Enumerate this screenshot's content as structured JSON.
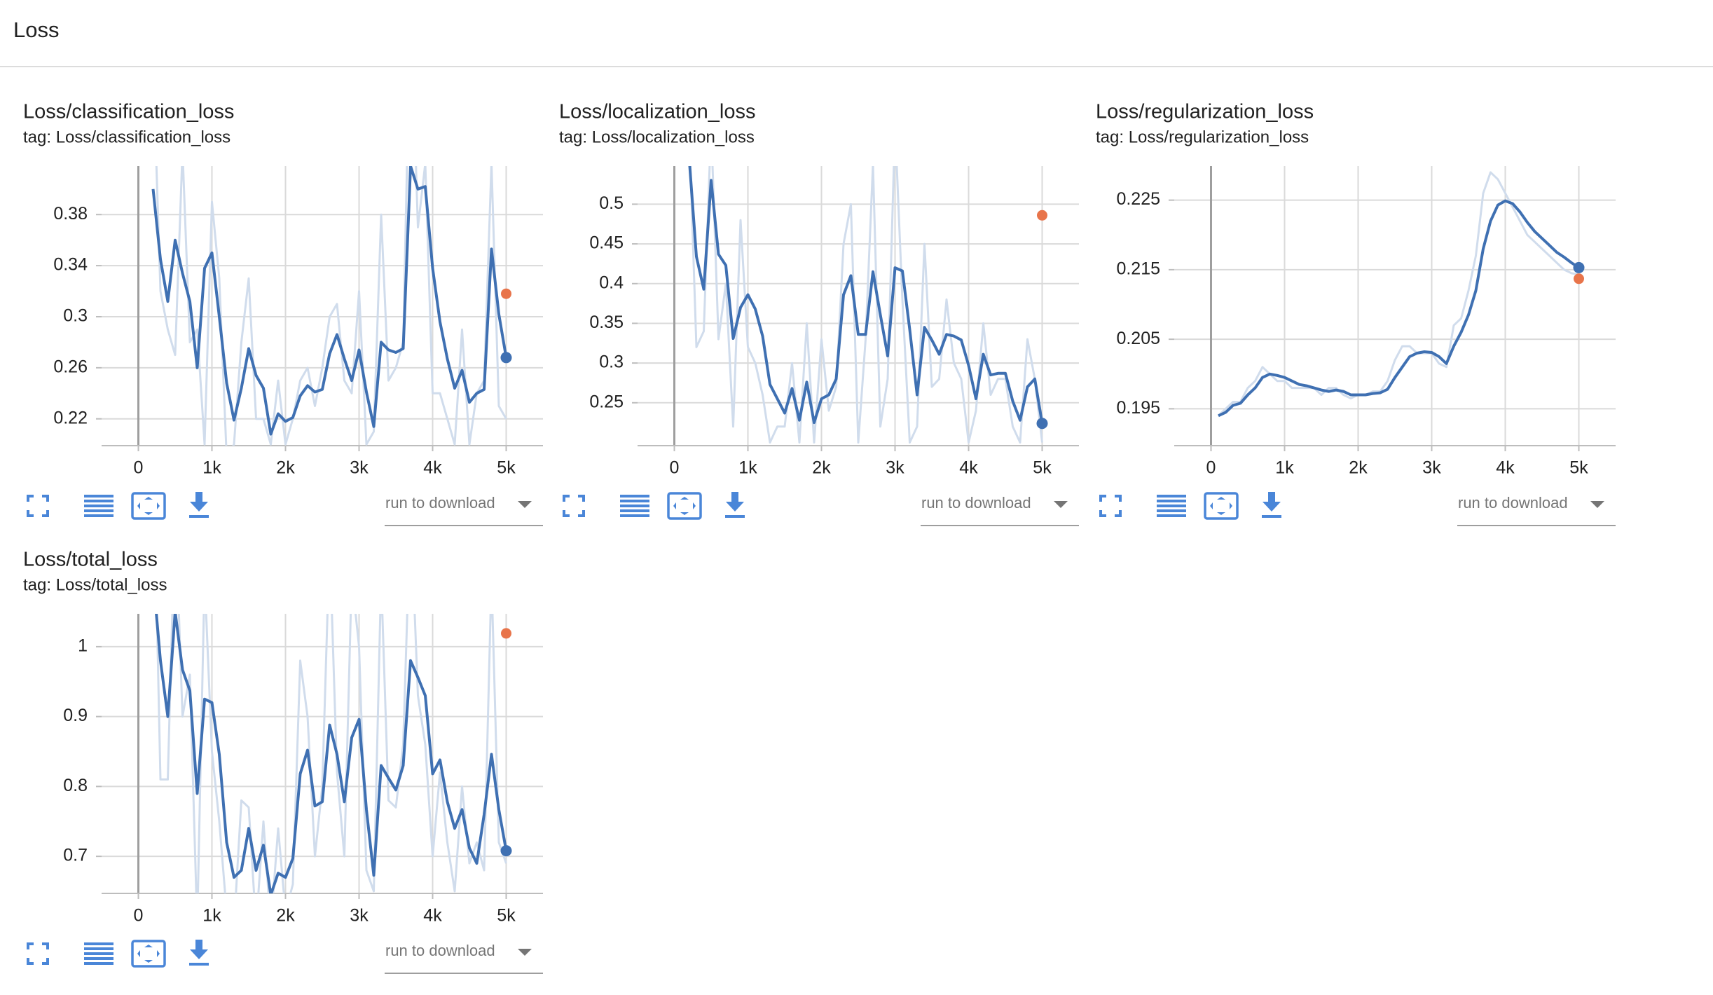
{
  "header": {
    "title": "Loss"
  },
  "chart_data": [
    {
      "type": "line",
      "title": "Loss/classification_loss",
      "subtitle": "tag: Loss/classification_loss",
      "dropdown": "run to download",
      "x": [
        200,
        300,
        400,
        500,
        600,
        700,
        800,
        900,
        1000,
        1100,
        1200,
        1300,
        1400,
        1500,
        1600,
        1700,
        1800,
        1900,
        2000,
        2100,
        2200,
        2300,
        2400,
        2500,
        2600,
        2700,
        2800,
        2900,
        3000,
        3100,
        3200,
        3300,
        3400,
        3500,
        3600,
        3700,
        3800,
        3900,
        4000,
        4100,
        4200,
        4300,
        4400,
        4500,
        4600,
        4700,
        4800,
        4900,
        5000
      ],
      "series": [
        {
          "color": "#d0dcec",
          "values": [
            0.5,
            0.32,
            0.29,
            0.27,
            0.43,
            0.28,
            0.29,
            0.2,
            0.39,
            0.33,
            0.19,
            0.2,
            0.28,
            0.33,
            0.22,
            0.22,
            0.2,
            0.25,
            0.2,
            0.22,
            0.25,
            0.26,
            0.23,
            0.26,
            0.3,
            0.31,
            0.25,
            0.24,
            0.32,
            0.2,
            0.21,
            0.38,
            0.25,
            0.26,
            0.28,
            0.55,
            0.37,
            0.42,
            0.24,
            0.24,
            0.22,
            0.2,
            0.29,
            0.2,
            0.24,
            0.25,
            0.42,
            0.23,
            0.22
          ]
        },
        {
          "color": "#3f70b2",
          "values": [
            0.4,
            0.345,
            0.312,
            0.36,
            0.334,
            0.312,
            0.26,
            0.338,
            0.35,
            0.3,
            0.248,
            0.219,
            0.244,
            0.275,
            0.254,
            0.244,
            0.208,
            0.224,
            0.218,
            0.221,
            0.238,
            0.246,
            0.241,
            0.243,
            0.271,
            0.286,
            0.267,
            0.25,
            0.274,
            0.241,
            0.214,
            0.28,
            0.274,
            0.272,
            0.275,
            0.418,
            0.4,
            0.402,
            0.338,
            0.296,
            0.267,
            0.244,
            0.258,
            0.233,
            0.24,
            0.243,
            0.353,
            0.302,
            0.268
          ]
        }
      ],
      "marker": {
        "x": 5000,
        "value": 0.318,
        "color": "#e8744a"
      },
      "xlim": [
        -500,
        5500
      ],
      "ylim": [
        0.199,
        0.418
      ],
      "xticks": [
        {
          "value": 0,
          "label": "0"
        },
        {
          "value": 1000,
          "label": "1k"
        },
        {
          "value": 2000,
          "label": "2k"
        },
        {
          "value": 3000,
          "label": "3k"
        },
        {
          "value": 4000,
          "label": "4k"
        },
        {
          "value": 5000,
          "label": "5k"
        }
      ],
      "yticks": [
        0.22,
        0.26,
        0.3,
        0.34,
        0.38
      ],
      "grid": true
    },
    {
      "type": "line",
      "title": "Loss/localization_loss",
      "subtitle": "tag: Loss/localization_loss",
      "dropdown": "run to download",
      "x": [
        200,
        300,
        400,
        500,
        600,
        700,
        800,
        900,
        1000,
        1100,
        1200,
        1300,
        1400,
        1500,
        1600,
        1700,
        1800,
        1900,
        2000,
        2100,
        2200,
        2300,
        2400,
        2500,
        2600,
        2700,
        2800,
        2900,
        3000,
        3100,
        3200,
        3300,
        3400,
        3500,
        3600,
        3700,
        3800,
        3900,
        4000,
        4100,
        4200,
        4300,
        4400,
        4500,
        4600,
        4700,
        4800,
        4900,
        5000
      ],
      "series": [
        {
          "color": "#d0dcec",
          "values": [
            0.6,
            0.32,
            0.34,
            0.6,
            0.33,
            0.4,
            0.22,
            0.48,
            0.32,
            0.3,
            0.26,
            0.2,
            0.22,
            0.22,
            0.3,
            0.2,
            0.35,
            0.2,
            0.33,
            0.24,
            0.27,
            0.45,
            0.5,
            0.2,
            0.33,
            0.55,
            0.22,
            0.28,
            0.6,
            0.38,
            0.2,
            0.22,
            0.45,
            0.27,
            0.28,
            0.38,
            0.3,
            0.28,
            0.2,
            0.24,
            0.35,
            0.26,
            0.28,
            0.28,
            0.22,
            0.2,
            0.33,
            0.28,
            0.2
          ]
        },
        {
          "color": "#3f70b2",
          "values": [
            0.56,
            0.434,
            0.393,
            0.53,
            0.437,
            0.423,
            0.331,
            0.37,
            0.386,
            0.368,
            0.334,
            0.273,
            0.255,
            0.237,
            0.268,
            0.228,
            0.276,
            0.225,
            0.255,
            0.26,
            0.28,
            0.386,
            0.41,
            0.336,
            0.336,
            0.415,
            0.361,
            0.309,
            0.42,
            0.416,
            0.342,
            0.26,
            0.345,
            0.329,
            0.311,
            0.336,
            0.334,
            0.329,
            0.297,
            0.255,
            0.311,
            0.285,
            0.287,
            0.287,
            0.252,
            0.228,
            0.27,
            0.28,
            0.224
          ]
        }
      ],
      "marker": {
        "x": 5000,
        "value": 0.486,
        "color": "#e8744a"
      },
      "xlim": [
        -500,
        5500
      ],
      "ylim": [
        0.196,
        0.548
      ],
      "xticks": [
        {
          "value": 0,
          "label": "0"
        },
        {
          "value": 1000,
          "label": "1k"
        },
        {
          "value": 2000,
          "label": "2k"
        },
        {
          "value": 3000,
          "label": "3k"
        },
        {
          "value": 4000,
          "label": "4k"
        },
        {
          "value": 5000,
          "label": "5k"
        }
      ],
      "yticks": [
        0.25,
        0.3,
        0.35,
        0.4,
        0.45,
        0.5
      ],
      "grid": true
    },
    {
      "type": "line",
      "title": "Loss/regularization_loss",
      "subtitle": "tag: Loss/regularization_loss",
      "dropdown": "run to download",
      "x": [
        100,
        200,
        300,
        400,
        500,
        600,
        700,
        800,
        900,
        1000,
        1100,
        1200,
        1300,
        1400,
        1500,
        1600,
        1700,
        1800,
        1900,
        2000,
        2100,
        2200,
        2300,
        2400,
        2500,
        2600,
        2700,
        2800,
        2900,
        3000,
        3100,
        3200,
        3300,
        3400,
        3500,
        3600,
        3700,
        3800,
        3900,
        4000,
        4100,
        4200,
        4300,
        4400,
        4500,
        4600,
        4700,
        4800,
        4900,
        5000
      ],
      "series": [
        {
          "color": "#d0dcec",
          "values": [
            0.194,
            0.195,
            0.196,
            0.196,
            0.198,
            0.199,
            0.201,
            0.2,
            0.199,
            0.199,
            0.198,
            0.198,
            0.198,
            0.198,
            0.197,
            0.198,
            0.198,
            0.197,
            0.1965,
            0.197,
            0.197,
            0.1975,
            0.1975,
            0.199,
            0.202,
            0.204,
            0.204,
            0.203,
            0.203,
            0.203,
            0.2015,
            0.201,
            0.207,
            0.208,
            0.212,
            0.217,
            0.226,
            0.229,
            0.228,
            0.226,
            0.224,
            0.222,
            0.22,
            0.219,
            0.218,
            0.217,
            0.216,
            0.215,
            0.2145,
            0.2143
          ]
        },
        {
          "color": "#3f70b2",
          "values": [
            0.194,
            0.1945,
            0.1955,
            0.1958,
            0.197,
            0.198,
            0.1995,
            0.2,
            0.1998,
            0.1995,
            0.199,
            0.1985,
            0.1983,
            0.198,
            0.1977,
            0.1975,
            0.1977,
            0.1975,
            0.197,
            0.197,
            0.197,
            0.1972,
            0.1973,
            0.1978,
            0.1995,
            0.201,
            0.2025,
            0.203,
            0.2032,
            0.2031,
            0.2025,
            0.2015,
            0.204,
            0.206,
            0.2085,
            0.212,
            0.218,
            0.222,
            0.2243,
            0.2249,
            0.2245,
            0.2233,
            0.2218,
            0.2205,
            0.2195,
            0.2185,
            0.2175,
            0.2168,
            0.216,
            0.2153
          ]
        }
      ],
      "marker": {
        "x": 5000,
        "value": 0.2137,
        "color": "#e8744a"
      },
      "xlim": [
        -500,
        5500
      ],
      "ylim": [
        0.1897,
        0.2299
      ],
      "xticks": [
        {
          "value": 0,
          "label": "0"
        },
        {
          "value": 1000,
          "label": "1k"
        },
        {
          "value": 2000,
          "label": "2k"
        },
        {
          "value": 3000,
          "label": "3k"
        },
        {
          "value": 4000,
          "label": "4k"
        },
        {
          "value": 5000,
          "label": "5k"
        }
      ],
      "yticks": [
        0.195,
        0.205,
        0.215,
        0.225
      ],
      "grid": true
    },
    {
      "type": "line",
      "title": "Loss/total_loss",
      "subtitle": "tag: Loss/total_loss",
      "dropdown": "run to download",
      "x": [
        200,
        300,
        400,
        500,
        600,
        700,
        800,
        900,
        1000,
        1100,
        1200,
        1300,
        1400,
        1500,
        1600,
        1700,
        1800,
        1900,
        2000,
        2100,
        2200,
        2300,
        2400,
        2500,
        2600,
        2700,
        2800,
        2900,
        3000,
        3100,
        3200,
        3300,
        3400,
        3500,
        3600,
        3700,
        3800,
        3900,
        4000,
        4100,
        4200,
        4300,
        4400,
        4500,
        4600,
        4700,
        4800,
        4900,
        5000
      ],
      "series": [
        {
          "color": "#d0dcec",
          "values": [
            1.3,
            0.81,
            0.81,
            1.2,
            0.9,
            0.96,
            0.6,
            1.1,
            0.85,
            0.75,
            0.62,
            0.6,
            0.78,
            0.77,
            0.6,
            0.75,
            0.6,
            0.74,
            0.62,
            0.66,
            0.98,
            0.9,
            0.7,
            0.8,
            1.15,
            0.82,
            0.7,
            1.1,
            1.0,
            0.68,
            0.65,
            1.1,
            0.78,
            0.77,
            0.86,
            1.2,
            0.93,
            0.86,
            0.7,
            0.82,
            0.72,
            0.65,
            0.8,
            0.69,
            0.72,
            0.68,
            1.1,
            0.72,
            0.69
          ]
        },
        {
          "color": "#3f70b2",
          "values": [
            1.1,
            0.98,
            0.9,
            1.05,
            0.967,
            0.937,
            0.79,
            0.925,
            0.92,
            0.846,
            0.72,
            0.67,
            0.68,
            0.74,
            0.68,
            0.716,
            0.645,
            0.676,
            0.67,
            0.697,
            0.818,
            0.852,
            0.772,
            0.778,
            0.888,
            0.846,
            0.778,
            0.87,
            0.896,
            0.767,
            0.673,
            0.83,
            0.812,
            0.795,
            0.83,
            0.98,
            0.956,
            0.93,
            0.818,
            0.838,
            0.778,
            0.74,
            0.767,
            0.712,
            0.69,
            0.76,
            0.846,
            0.767,
            0.708
          ]
        }
      ],
      "marker": {
        "x": 5000,
        "value": 1.019,
        "color": "#e8744a"
      },
      "xlim": [
        -500,
        5500
      ],
      "ylim": [
        0.647,
        1.047
      ],
      "xticks": [
        {
          "value": 0,
          "label": "0"
        },
        {
          "value": 1000,
          "label": "1k"
        },
        {
          "value": 2000,
          "label": "2k"
        },
        {
          "value": 3000,
          "label": "3k"
        },
        {
          "value": 4000,
          "label": "4k"
        },
        {
          "value": 5000,
          "label": "5k"
        }
      ],
      "yticks": [
        0.7,
        0.8,
        0.9,
        1
      ],
      "grid": true
    }
  ]
}
